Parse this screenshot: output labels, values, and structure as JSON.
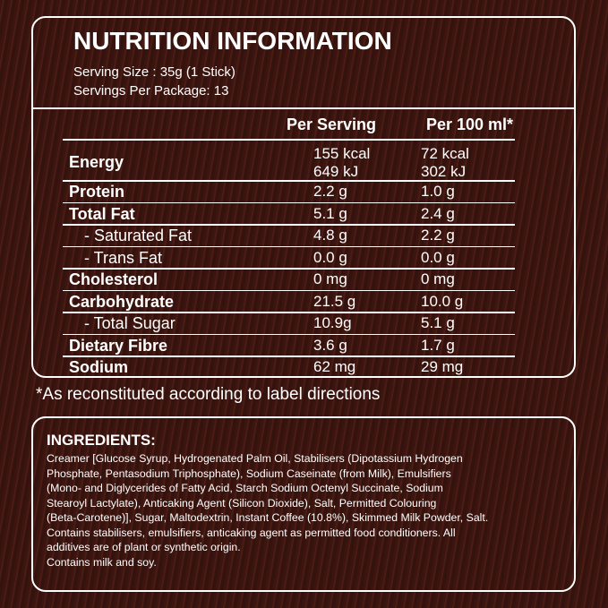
{
  "title": "NUTRITION INFORMATION",
  "serving_size": "Serving Size : 35g (1 Stick)",
  "servings_per_package": "Servings Per Package: 13",
  "table": {
    "header": [
      "Per Serving",
      "Per 100 ml*"
    ],
    "rows": [
      {
        "label": "Energy",
        "per_serving": [
          "155 kcal",
          "649 kJ"
        ],
        "per_100ml": [
          "72 kcal",
          "302 kJ"
        ]
      },
      {
        "label": "Protein",
        "per_serving": [
          "2.2 g"
        ],
        "per_100ml": [
          "1.0 g"
        ]
      },
      {
        "label": "Total Fat",
        "per_serving": [
          "5.1 g"
        ],
        "per_100ml": [
          "2.4 g"
        ]
      },
      {
        "label": "- Saturated Fat",
        "per_serving": [
          "4.8 g"
        ],
        "per_100ml": [
          "2.2 g"
        ]
      },
      {
        "label": "- Trans Fat",
        "per_serving": [
          "0.0 g"
        ],
        "per_100ml": [
          "0.0 g"
        ]
      },
      {
        "label": "Cholesterol",
        "per_serving": [
          "0 mg"
        ],
        "per_100ml": [
          "0 mg"
        ]
      },
      {
        "label": "Carbohydrate",
        "per_serving": [
          "21.5 g"
        ],
        "per_100ml": [
          "10.0 g"
        ]
      },
      {
        "label": "- Total Sugar",
        "per_serving": [
          "10.9g"
        ],
        "per_100ml": [
          "5.1 g"
        ]
      },
      {
        "label": "Dietary Fibre",
        "per_serving": [
          "3.6 g"
        ],
        "per_100ml": [
          "1.7 g"
        ]
      },
      {
        "label": "Sodium",
        "per_serving": [
          "62 mg"
        ],
        "per_100ml": [
          "29 mg"
        ]
      }
    ]
  },
  "footnote": "*As reconstituted according to label directions",
  "ingredients": {
    "heading": "INGREDIENTS:",
    "lines": [
      "Creamer [Glucose Syrup, Hydrogenated Palm Oil, Stabilisers (Dipotassium Hydrogen",
      "Phosphate, Pentasodium Triphosphate), Sodium Caseinate (from Milk), Emulsifiers",
      "(Mono- and Diglycerides of Fatty Acid, Starch Sodium Octenyl Succinate, Sodium",
      "Stearoyl Lactylate), Anticaking Agent (Silicon Dioxide), Salt, Permitted Colouring",
      "(Beta-Carotene)], Sugar, Maltodextrin, Instant Coffee (10.8%), Skimmed Milk Powder, Salt.",
      "Contains stabilisers, emulsifiers, anticaking agent as permitted food conditioners. All",
      "additives are of plant or synthetic origin.",
      "Contains milk and soy."
    ]
  }
}
